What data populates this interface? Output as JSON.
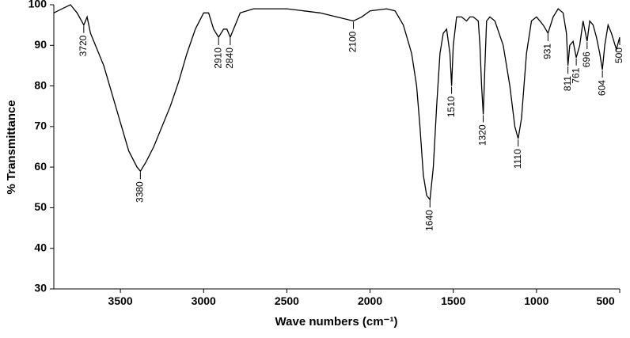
{
  "chart_data": {
    "type": "line",
    "x_label": "Wave numbers (cm⁻¹)",
    "y_label": "% Transmittance",
    "color": "#000000",
    "xlim": [
      3900,
      500
    ],
    "xticks": [
      3500,
      3000,
      2500,
      2000,
      1500,
      1000,
      500
    ],
    "ylim": [
      30,
      100
    ],
    "yticks": [
      30,
      40,
      50,
      60,
      70,
      80,
      90,
      100
    ],
    "grid": false,
    "x": [
      3900,
      3850,
      3800,
      3760,
      3720,
      3700,
      3680,
      3650,
      3600,
      3550,
      3500,
      3450,
      3400,
      3380,
      3350,
      3300,
      3250,
      3200,
      3150,
      3100,
      3050,
      3000,
      2970,
      2940,
      2910,
      2880,
      2860,
      2840,
      2810,
      2780,
      2700,
      2600,
      2500,
      2400,
      2300,
      2200,
      2100,
      2050,
      2000,
      1900,
      1850,
      1800,
      1750,
      1720,
      1700,
      1680,
      1660,
      1640,
      1620,
      1600,
      1580,
      1560,
      1540,
      1520,
      1510,
      1500,
      1480,
      1450,
      1420,
      1400,
      1380,
      1350,
      1340,
      1330,
      1320,
      1310,
      1300,
      1280,
      1250,
      1200,
      1160,
      1130,
      1110,
      1090,
      1060,
      1030,
      1000,
      960,
      931,
      900,
      870,
      840,
      820,
      811,
      800,
      780,
      761,
      740,
      720,
      696,
      680,
      660,
      640,
      620,
      604,
      590,
      570,
      550,
      520,
      500
    ],
    "values": [
      98,
      99,
      100,
      98,
      95,
      97,
      93,
      90,
      85,
      78,
      71,
      64,
      60,
      59,
      61,
      65,
      70,
      75,
      81,
      88,
      94,
      98,
      98,
      94,
      92,
      94,
      94,
      92,
      95,
      98,
      99,
      99,
      99,
      98.5,
      98,
      97,
      96,
      97,
      98.5,
      99,
      98.5,
      95,
      88,
      80,
      70,
      58,
      53,
      52,
      60,
      75,
      88,
      93,
      94,
      88,
      80,
      90,
      97,
      97,
      96,
      97,
      97,
      96,
      90,
      80,
      73,
      85,
      96,
      97,
      96,
      90,
      80,
      70,
      67,
      72,
      88,
      96,
      97,
      95,
      93,
      97,
      99,
      98,
      93,
      85,
      90,
      91,
      87,
      90,
      96,
      91,
      96,
      95,
      92,
      88,
      84,
      90,
      95,
      93,
      89,
      92
    ],
    "annotations": [
      {
        "text": "3720",
        "x": 3720,
        "y": 95
      },
      {
        "text": "3380",
        "x": 3380,
        "y": 59
      },
      {
        "text": "2910",
        "x": 2910,
        "y": 92
      },
      {
        "text": "2840",
        "x": 2840,
        "y": 92
      },
      {
        "text": "2100",
        "x": 2100,
        "y": 96
      },
      {
        "text": "1640",
        "x": 1640,
        "y": 52
      },
      {
        "text": "1510",
        "x": 1510,
        "y": 80
      },
      {
        "text": "1320",
        "x": 1320,
        "y": 73
      },
      {
        "text": "1110",
        "x": 1110,
        "y": 67
      },
      {
        "text": "931",
        "x": 931,
        "y": 93
      },
      {
        "text": "811",
        "x": 811,
        "y": 85
      },
      {
        "text": "761",
        "x": 761,
        "y": 87
      },
      {
        "text": "696",
        "x": 696,
        "y": 91
      },
      {
        "text": "604",
        "x": 604,
        "y": 84
      },
      {
        "text": "500",
        "x": 500,
        "y": 92
      }
    ]
  }
}
